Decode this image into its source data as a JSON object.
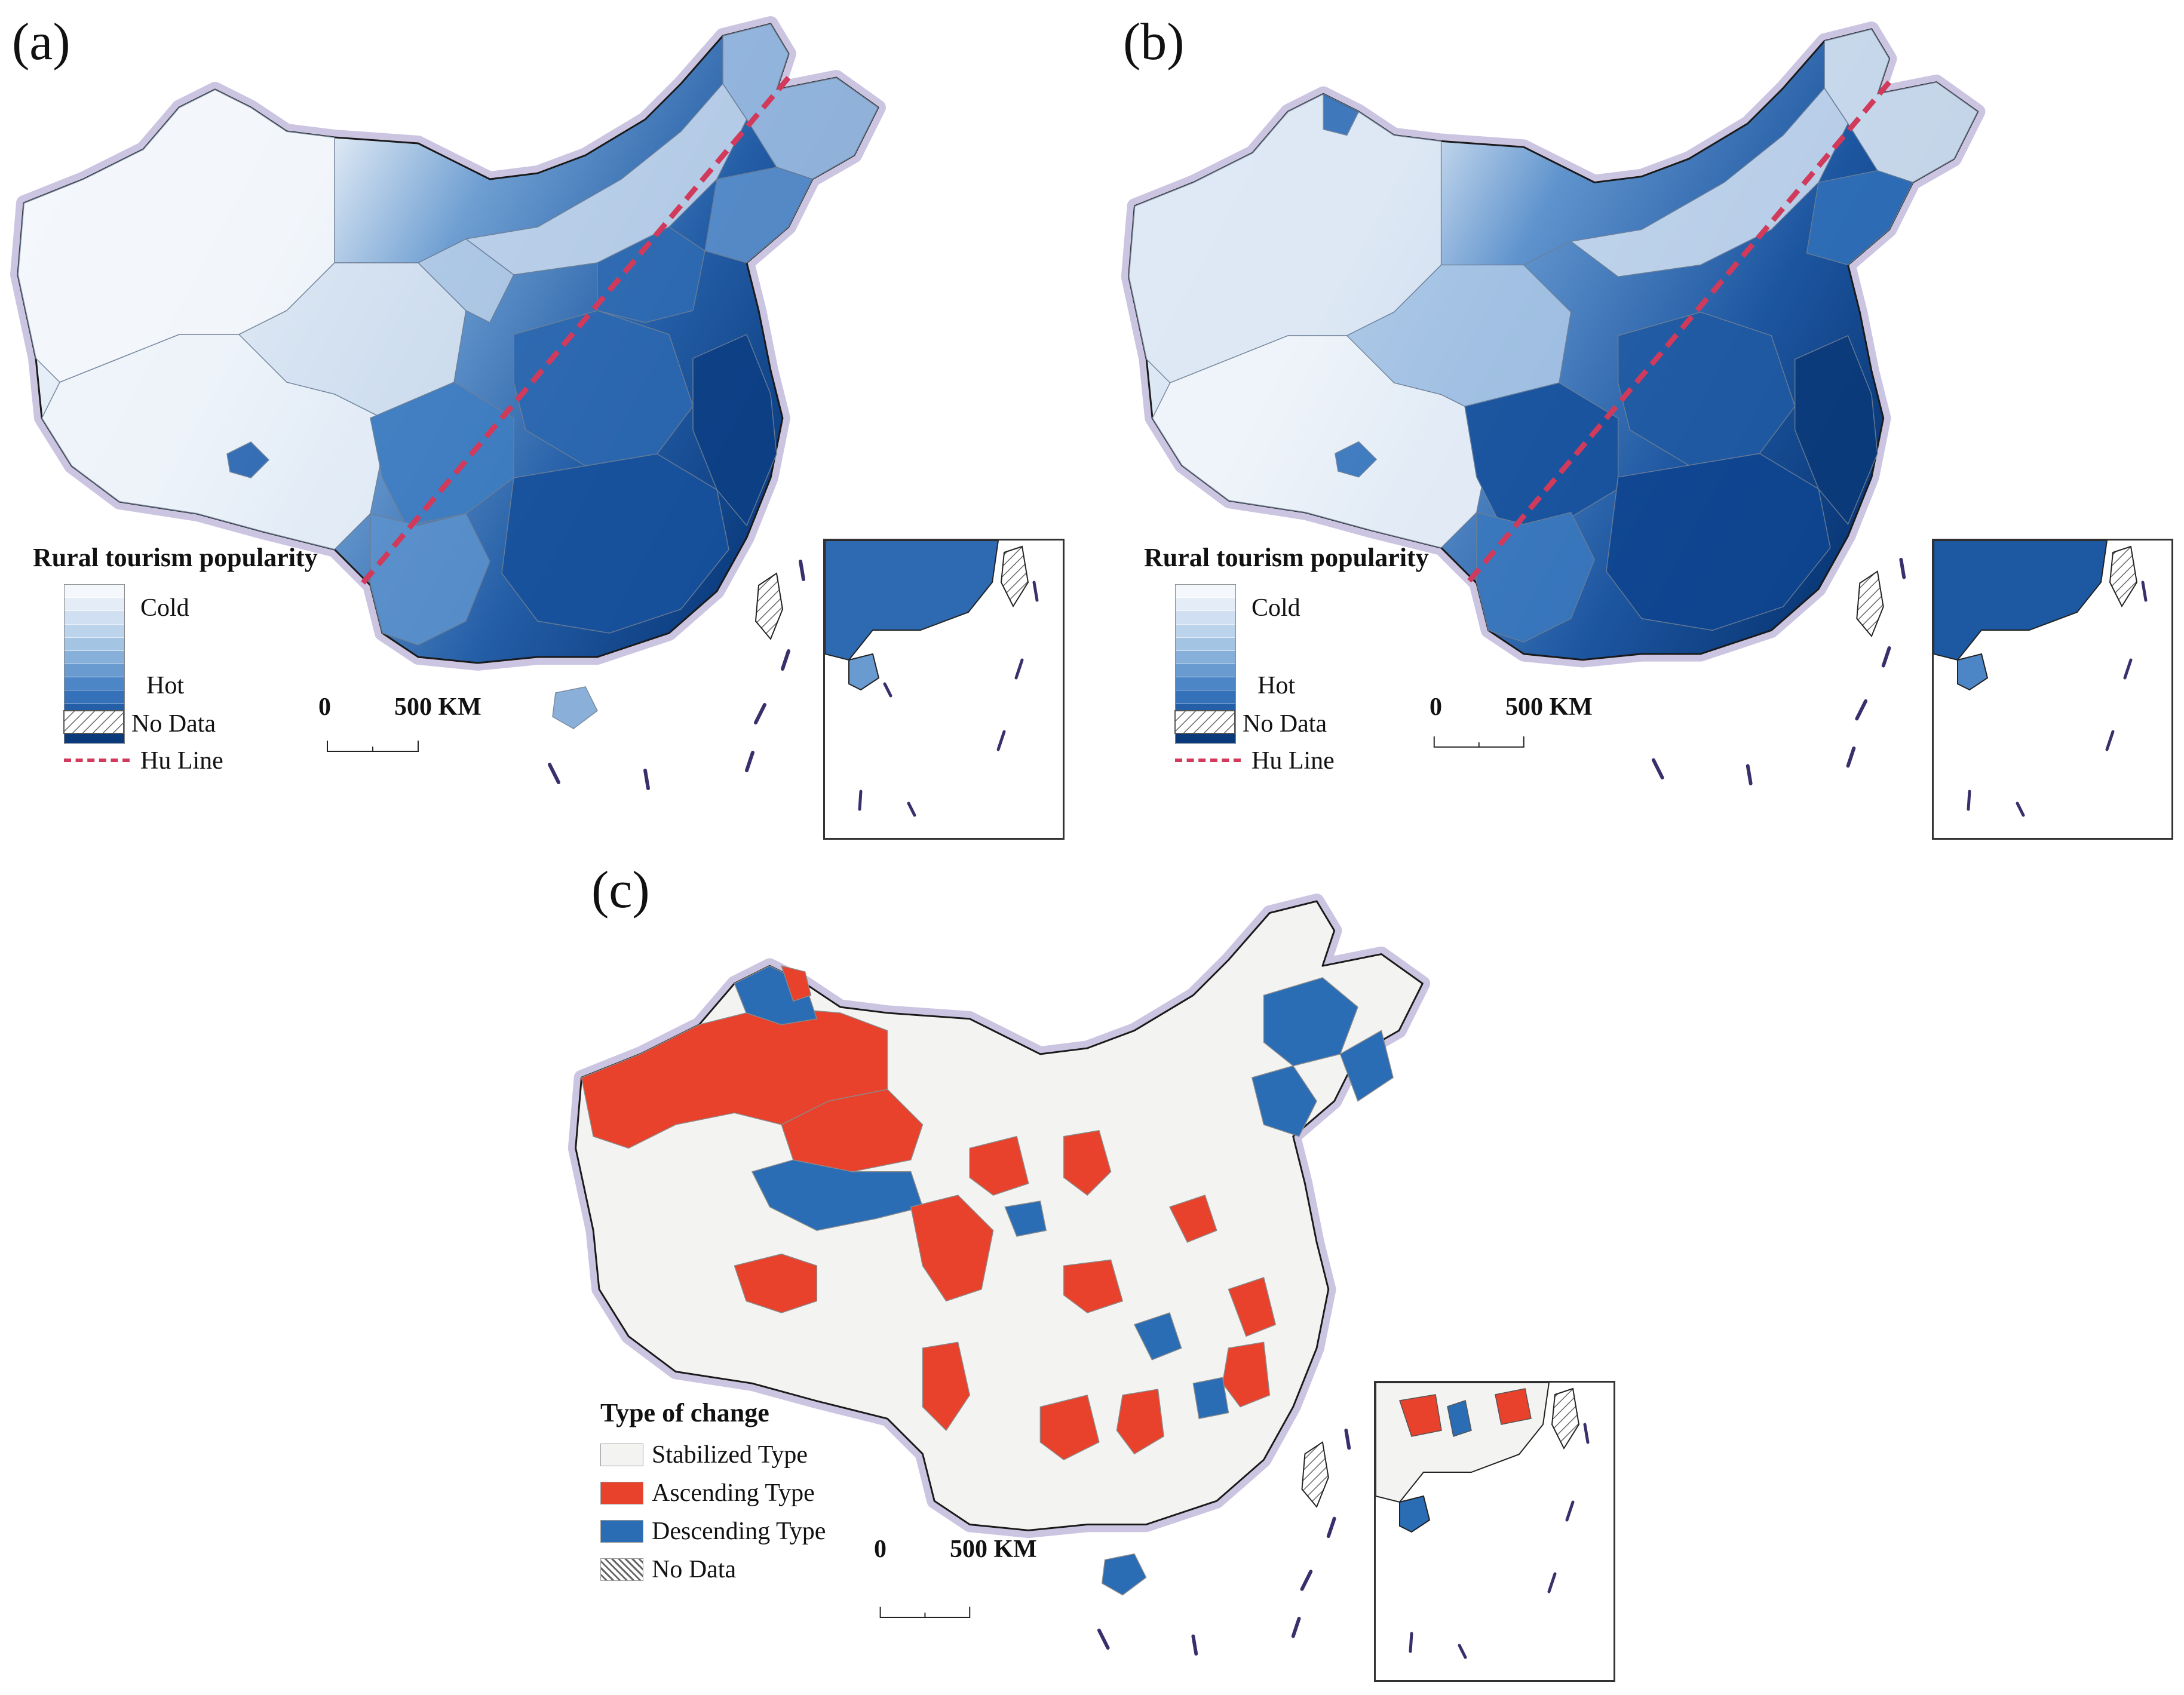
{
  "panels": {
    "a": {
      "label": "(a)"
    },
    "b": {
      "label": "(b)"
    },
    "c": {
      "label": "(c)"
    }
  },
  "popularity_legend": {
    "title": "Rural tourism popularity",
    "cold_label": "Cold",
    "hot_label": "Hot",
    "no_data_label": "No Data",
    "hu_line_label": "Hu Line",
    "ramp_colors": [
      "#f4f8fd",
      "#e3ecf7",
      "#d0e0f2",
      "#bcd3ec",
      "#a4c4e4",
      "#86afda",
      "#6a9bd0",
      "#4d86c6",
      "#3571b8",
      "#235ea6",
      "#144b93",
      "#0b3a7a"
    ]
  },
  "change_legend": {
    "title": "Type of change",
    "items": [
      {
        "label": "Stabilized Type",
        "color": "#f3f3f1"
      },
      {
        "label": "Ascending Type",
        "color": "#e8412c"
      },
      {
        "label": "Descending Type",
        "color": "#2a6db5"
      },
      {
        "label": "No Data",
        "color": "hatch"
      }
    ]
  },
  "scale_bar": {
    "start_label": "0",
    "end_label": "500 KM"
  },
  "colors": {
    "hu_line": "#d13a5a",
    "border_halo": "#b7acd6",
    "ascending": "#e8412c",
    "descending": "#2a6db5",
    "stabilized": "#f3f3f1"
  }
}
